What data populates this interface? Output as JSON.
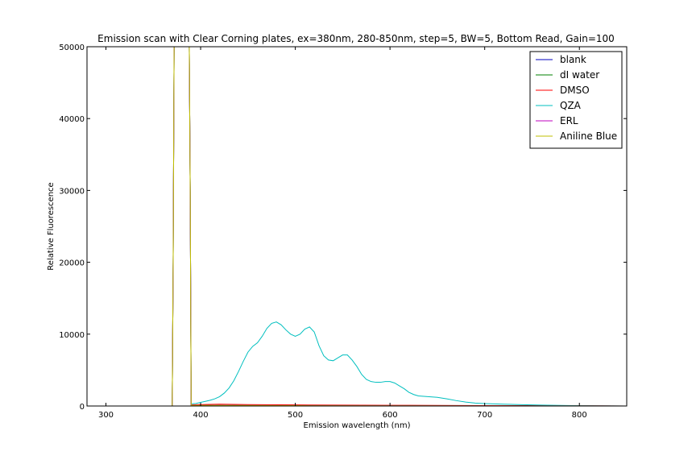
{
  "chart_data": {
    "type": "line",
    "title": "Emission scan with Clear Corning plates, ex=380nm, 280-850nm, step=5, BW=5, Bottom Read, Gain=100",
    "xlabel": "Emission wavelength (nm)",
    "ylabel": "Relative Fluorescence",
    "xlim": [
      280,
      850
    ],
    "ylim": [
      0,
      50000
    ],
    "xticks": [
      300,
      400,
      500,
      600,
      700,
      800
    ],
    "yticks": [
      0,
      10000,
      20000,
      30000,
      40000,
      50000
    ],
    "grid": false,
    "legend_position": "top-right",
    "series": [
      {
        "name": "blank",
        "color": "#0000bf",
        "x": [
          280,
          365,
          370,
          371,
          372,
          373,
          388,
          389,
          390,
          400,
          500,
          600,
          700,
          800,
          850
        ],
        "y": [
          0,
          0,
          0,
          20000,
          50000,
          50000,
          50000,
          30000,
          100,
          80,
          50,
          30,
          20,
          10,
          0
        ]
      },
      {
        "name": "dI water",
        "color": "#008000",
        "x": [
          280,
          365,
          370,
          371,
          372,
          373,
          388,
          389,
          390,
          400,
          500,
          600,
          700,
          800,
          850
        ],
        "y": [
          0,
          0,
          0,
          20000,
          50000,
          50000,
          50000,
          30000,
          100,
          80,
          50,
          30,
          20,
          10,
          0
        ]
      },
      {
        "name": "DMSO",
        "color": "#ff0000",
        "x": [
          280,
          365,
          370,
          371,
          372,
          373,
          388,
          389,
          390,
          400,
          420,
          450,
          500,
          600,
          700,
          800,
          850
        ],
        "y": [
          0,
          0,
          0,
          20000,
          50000,
          50000,
          50000,
          30000,
          150,
          200,
          250,
          200,
          150,
          100,
          60,
          30,
          0
        ]
      },
      {
        "name": "QZA",
        "color": "#00bfbf",
        "x": [
          280,
          365,
          370,
          371,
          372,
          373,
          388,
          389,
          390,
          395,
          400,
          405,
          410,
          415,
          420,
          425,
          430,
          435,
          440,
          445,
          450,
          455,
          460,
          465,
          470,
          475,
          480,
          485,
          490,
          495,
          500,
          505,
          510,
          515,
          520,
          525,
          530,
          535,
          540,
          545,
          550,
          555,
          560,
          565,
          570,
          575,
          580,
          585,
          590,
          595,
          600,
          605,
          610,
          615,
          620,
          625,
          630,
          640,
          650,
          660,
          670,
          680,
          690,
          700,
          720,
          740,
          760,
          780,
          800,
          820,
          850
        ],
        "y": [
          0,
          0,
          0,
          20000,
          50000,
          50000,
          50000,
          30000,
          300,
          350,
          500,
          650,
          800,
          1000,
          1300,
          1800,
          2500,
          3500,
          4800,
          6200,
          7500,
          8300,
          8800,
          9700,
          10800,
          11500,
          11700,
          11300,
          10600,
          10000,
          9700,
          10000,
          10700,
          11000,
          10300,
          8400,
          7000,
          6400,
          6300,
          6700,
          7100,
          7100,
          6400,
          5500,
          4400,
          3700,
          3400,
          3300,
          3300,
          3400,
          3400,
          3200,
          2800,
          2400,
          1900,
          1600,
          1400,
          1300,
          1200,
          1000,
          750,
          550,
          400,
          330,
          250,
          180,
          130,
          80,
          40,
          20,
          0
        ]
      },
      {
        "name": "ERL",
        "color": "#bf00bf",
        "x": [
          280,
          365,
          370,
          371,
          372,
          373,
          388,
          389,
          390,
          400,
          500,
          600,
          700,
          800,
          850
        ],
        "y": [
          0,
          0,
          0,
          20000,
          50000,
          50000,
          50000,
          30000,
          100,
          80,
          50,
          30,
          20,
          10,
          0
        ]
      },
      {
        "name": "Aniline Blue",
        "color": "#bfbf00",
        "x": [
          280,
          365,
          370,
          371,
          372,
          373,
          388,
          389,
          390,
          400,
          500,
          600,
          700,
          800,
          850
        ],
        "y": [
          0,
          0,
          0,
          20000,
          50000,
          50000,
          50000,
          30000,
          100,
          80,
          50,
          30,
          20,
          10,
          0
        ]
      }
    ]
  }
}
